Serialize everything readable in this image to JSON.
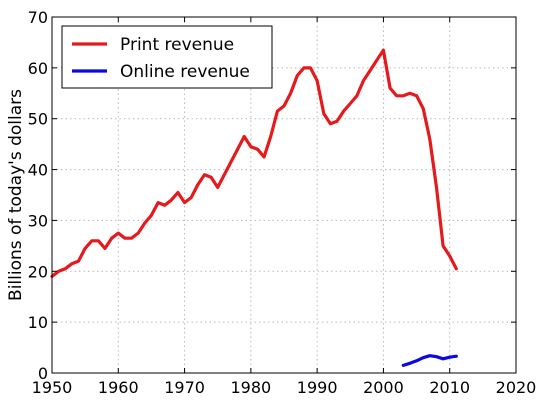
{
  "chart_data": {
    "type": "line",
    "title": "",
    "xlabel": "",
    "ylabel": "Billions of today's dollars",
    "xlim": [
      1950,
      2020
    ],
    "ylim": [
      0,
      70
    ],
    "xticks": [
      1950,
      1960,
      1970,
      1980,
      1990,
      2000,
      2010,
      2020
    ],
    "yticks": [
      0,
      10,
      20,
      30,
      40,
      50,
      60,
      70
    ],
    "grid": true,
    "legend_position": "top-left",
    "series": [
      {
        "name": "Print revenue",
        "color": "#e41a1c",
        "x": [
          1950,
          1951,
          1952,
          1953,
          1954,
          1955,
          1956,
          1957,
          1958,
          1959,
          1960,
          1961,
          1962,
          1963,
          1964,
          1965,
          1966,
          1967,
          1968,
          1969,
          1970,
          1971,
          1972,
          1973,
          1974,
          1975,
          1976,
          1977,
          1978,
          1979,
          1980,
          1981,
          1982,
          1983,
          1984,
          1985,
          1986,
          1987,
          1988,
          1989,
          1990,
          1991,
          1992,
          1993,
          1994,
          1995,
          1996,
          1997,
          1998,
          1999,
          2000,
          2001,
          2002,
          2003,
          2004,
          2005,
          2006,
          2007,
          2008,
          2009,
          2010,
          2011
        ],
        "values": [
          19,
          20,
          20.5,
          21.5,
          22,
          24.5,
          26,
          26,
          24.5,
          26.5,
          27.5,
          26.5,
          26.5,
          27.5,
          29.5,
          31,
          33.5,
          33,
          34,
          35.5,
          33.5,
          34.5,
          37,
          39,
          38.5,
          36.5,
          39,
          41.5,
          44,
          46.5,
          44.5,
          44,
          42.5,
          46.5,
          51.5,
          52.5,
          55,
          58.5,
          60,
          60,
          57.5,
          51,
          49,
          49.5,
          51.5,
          53,
          54.5,
          57.5,
          59.5,
          61.5,
          63.5,
          56,
          54.5,
          54.5,
          55,
          54.5,
          52,
          46,
          36.5,
          25,
          23,
          20.5
        ]
      },
      {
        "name": "Online revenue",
        "color": "#0a0ae0",
        "x": [
          2003,
          2004,
          2005,
          2006,
          2007,
          2008,
          2009,
          2010,
          2011
        ],
        "values": [
          1.5,
          1.9,
          2.4,
          3.0,
          3.4,
          3.2,
          2.8,
          3.1,
          3.3
        ]
      }
    ]
  }
}
